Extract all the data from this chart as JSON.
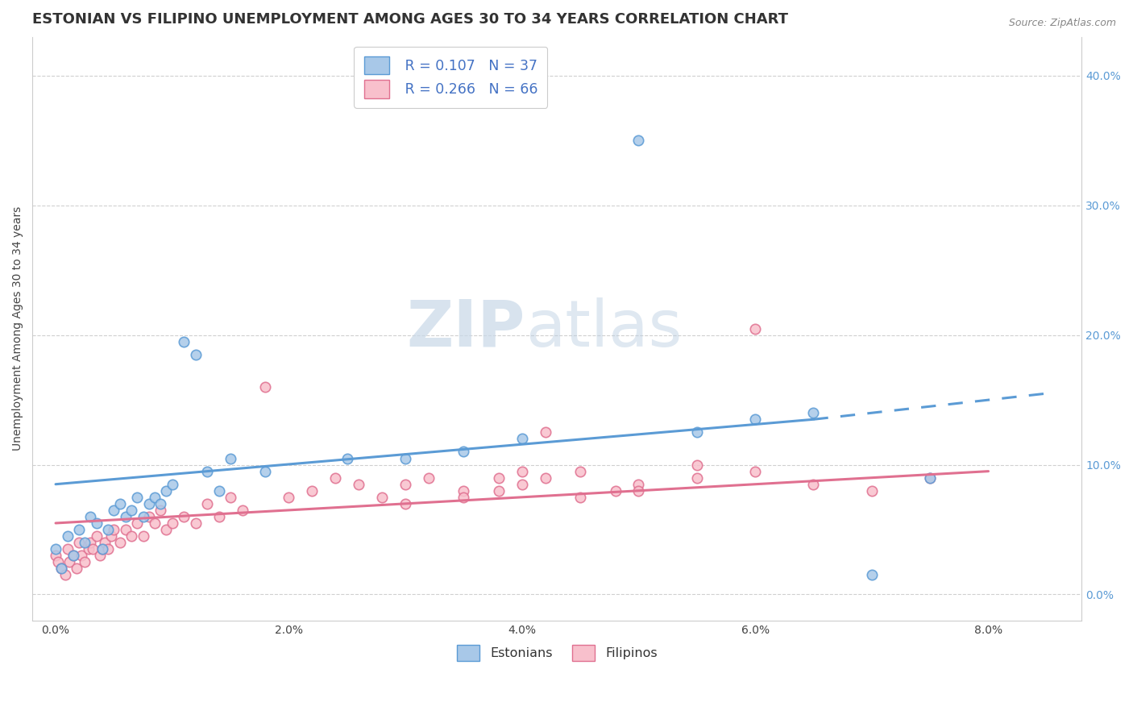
{
  "title": "ESTONIAN VS FILIPINO UNEMPLOYMENT AMONG AGES 30 TO 34 YEARS CORRELATION CHART",
  "source": "Source: ZipAtlas.com",
  "ylabel": "Unemployment Among Ages 30 to 34 years",
  "xlabel_ticks": [
    "0.0%",
    "2.0%",
    "4.0%",
    "6.0%",
    "8.0%"
  ],
  "xlabel_vals": [
    0.0,
    2.0,
    4.0,
    6.0,
    8.0
  ],
  "ylim": [
    -2.0,
    43.0
  ],
  "xlim": [
    -0.2,
    8.8
  ],
  "right_ytick_vals": [
    0.0,
    10.0,
    20.0,
    30.0,
    40.0
  ],
  "right_ytick_labels": [
    "0.0%",
    "10.0%",
    "20.0%",
    "30.0%",
    "40.0%"
  ],
  "legend_r1": "R = 0.107",
  "legend_n1": "N = 37",
  "legend_r2": "R = 0.266",
  "legend_n2": "N = 66",
  "legend_label1": "Estonians",
  "legend_label2": "Filipinos",
  "color_estonian_fill": "#a8c8e8",
  "color_estonian_edge": "#5b9bd5",
  "color_filipino_fill": "#f8c0cc",
  "color_filipino_edge": "#e07090",
  "watermark_zip": "ZIP",
  "watermark_atlas": "atlas",
  "background_color": "#ffffff",
  "grid_color": "#d0d0d0",
  "title_fontsize": 13,
  "axis_label_fontsize": 10,
  "tick_fontsize": 10,
  "estonian_x": [
    0.0,
    0.05,
    0.1,
    0.15,
    0.2,
    0.25,
    0.3,
    0.35,
    0.4,
    0.45,
    0.5,
    0.55,
    0.6,
    0.65,
    0.7,
    0.75,
    0.8,
    0.85,
    0.9,
    0.95,
    1.0,
    1.1,
    1.2,
    1.3,
    1.4,
    1.5,
    1.8,
    2.5,
    3.0,
    3.5,
    4.0,
    5.0,
    5.5,
    6.0,
    6.5,
    7.0,
    7.5
  ],
  "estonian_y": [
    3.5,
    2.0,
    4.5,
    3.0,
    5.0,
    4.0,
    6.0,
    5.5,
    3.5,
    5.0,
    6.5,
    7.0,
    6.0,
    6.5,
    7.5,
    6.0,
    7.0,
    7.5,
    7.0,
    8.0,
    8.5,
    19.5,
    18.5,
    9.5,
    8.0,
    10.5,
    9.5,
    10.5,
    10.5,
    11.0,
    12.0,
    35.0,
    12.5,
    13.5,
    14.0,
    1.5,
    9.0
  ],
  "filipino_x": [
    0.0,
    0.02,
    0.05,
    0.08,
    0.1,
    0.12,
    0.15,
    0.18,
    0.2,
    0.22,
    0.25,
    0.28,
    0.3,
    0.32,
    0.35,
    0.38,
    0.4,
    0.42,
    0.45,
    0.48,
    0.5,
    0.55,
    0.6,
    0.65,
    0.7,
    0.75,
    0.8,
    0.85,
    0.9,
    0.95,
    1.0,
    1.1,
    1.2,
    1.3,
    1.4,
    1.5,
    1.6,
    1.8,
    2.0,
    2.2,
    2.4,
    2.6,
    2.8,
    3.0,
    3.2,
    3.5,
    3.8,
    4.0,
    4.2,
    4.5,
    4.8,
    5.0,
    5.5,
    6.0,
    6.5,
    7.0,
    3.0,
    4.0,
    5.5,
    6.0,
    7.5,
    4.5,
    5.0,
    3.5,
    3.8,
    4.2
  ],
  "filipino_y": [
    3.0,
    2.5,
    2.0,
    1.5,
    3.5,
    2.5,
    3.0,
    2.0,
    4.0,
    3.0,
    2.5,
    3.5,
    4.0,
    3.5,
    4.5,
    3.0,
    3.5,
    4.0,
    3.5,
    4.5,
    5.0,
    4.0,
    5.0,
    4.5,
    5.5,
    4.5,
    6.0,
    5.5,
    6.5,
    5.0,
    5.5,
    6.0,
    5.5,
    7.0,
    6.0,
    7.5,
    6.5,
    16.0,
    7.5,
    8.0,
    9.0,
    8.5,
    7.5,
    8.5,
    9.0,
    8.0,
    9.0,
    8.5,
    12.5,
    9.5,
    8.0,
    8.5,
    9.0,
    9.5,
    8.5,
    8.0,
    7.0,
    9.5,
    10.0,
    20.5,
    9.0,
    7.5,
    8.0,
    7.5,
    8.0,
    9.0
  ],
  "trend_estonian_x0": 0.0,
  "trend_estonian_y0": 8.5,
  "trend_estonian_x1": 6.5,
  "trend_estonian_y1": 13.5,
  "dash_estonian_x0": 6.5,
  "dash_estonian_y0": 13.5,
  "dash_estonian_x1": 8.5,
  "dash_estonian_y1": 15.5,
  "trend_filipino_x0": 0.0,
  "trend_filipino_y0": 5.5,
  "trend_filipino_x1": 8.0,
  "trend_filipino_y1": 9.5
}
